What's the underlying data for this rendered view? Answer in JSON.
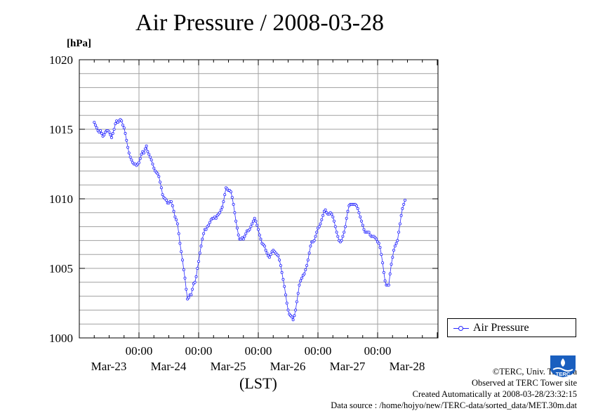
{
  "chart_data": {
    "type": "line",
    "title": "Air Pressure / 2008-03-28",
    "ylabel": "[hPa]",
    "xlabel": "(LST)",
    "ylim": [
      1000,
      1020
    ],
    "yticks": [
      "1000",
      "1005",
      "1010",
      "1015",
      "1020"
    ],
    "x_axis": {
      "time_labels": [
        "00:00",
        "00:00",
        "00:00",
        "00:00",
        "00:00"
      ],
      "date_labels": [
        "Mar-23",
        "Mar-24",
        "Mar-25",
        "Mar-26",
        "Mar-27",
        "Mar-28"
      ]
    },
    "grid": true,
    "legend_position": "right",
    "series": [
      {
        "name": "Air Pressure",
        "color": "#2828ff",
        "sample_interval": "30 min",
        "start": "Mar-22 06:00",
        "values": [
          1015.5,
          1015.3,
          1015.1,
          1014.9,
          1014.8,
          1014.9,
          1014.7,
          1014.5,
          1014.6,
          1014.8,
          1014.9,
          1014.9,
          1014.8,
          1014.6,
          1014.4,
          1014.7,
          1015.0,
          1015.4,
          1015.6,
          1015.5,
          1015.6,
          1015.7,
          1015.6,
          1015.3,
          1015.1,
          1014.7,
          1014.2,
          1013.7,
          1013.3,
          1013.0,
          1012.8,
          1012.6,
          1012.5,
          1012.5,
          1012.4,
          1012.5,
          1012.6,
          1012.9,
          1013.2,
          1013.4,
          1013.3,
          1013.6,
          1013.8,
          1013.4,
          1013.2,
          1013.0,
          1012.8,
          1012.5,
          1012.2,
          1012.0,
          1011.9,
          1011.8,
          1011.6,
          1011.2,
          1010.8,
          1010.3,
          1010.1,
          1010.0,
          1009.9,
          1009.7,
          1009.7,
          1009.8,
          1009.8,
          1009.5,
          1009.1,
          1008.7,
          1008.5,
          1008.2,
          1007.5,
          1006.8,
          1006.2,
          1005.6,
          1004.9,
          1004.3,
          1003.5,
          1002.8,
          1002.9,
          1003.1,
          1003.1,
          1003.5,
          1003.9,
          1004.0,
          1004.4,
          1005.0,
          1005.5,
          1006.1,
          1006.6,
          1007.1,
          1007.5,
          1007.8,
          1007.8,
          1008.0,
          1008.1,
          1008.3,
          1008.5,
          1008.6,
          1008.6,
          1008.7,
          1008.6,
          1008.8,
          1008.9,
          1009.0,
          1009.2,
          1009.4,
          1009.8,
          1010.3,
          1010.8,
          1010.7,
          1010.6,
          1010.6,
          1010.5,
          1010.1,
          1009.6,
          1009.0,
          1008.4,
          1007.9,
          1007.4,
          1007.1,
          1007.1,
          1007.2,
          1007.1,
          1007.3,
          1007.5,
          1007.7,
          1007.7,
          1007.8,
          1008.0,
          1008.2,
          1008.4,
          1008.6,
          1008.4,
          1008.1,
          1007.8,
          1007.4,
          1007.1,
          1006.8,
          1006.7,
          1006.6,
          1006.3,
          1006.1,
          1005.9,
          1005.8,
          1006.0,
          1006.2,
          1006.3,
          1006.2,
          1006.1,
          1006.0,
          1005.9,
          1005.6,
          1005.2,
          1004.7,
          1004.2,
          1003.7,
          1003.1,
          1002.5,
          1002.0,
          1001.7,
          1001.6,
          1001.5,
          1001.3,
          1001.6,
          1002.0,
          1002.6,
          1003.2,
          1003.8,
          1004.1,
          1004.3,
          1004.5,
          1004.6,
          1004.9,
          1005.2,
          1005.6,
          1006.1,
          1006.6,
          1006.9,
          1006.9,
          1007.0,
          1007.3,
          1007.6,
          1007.9,
          1008.0,
          1008.2,
          1008.5,
          1008.8,
          1009.1,
          1009.2,
          1009.0,
          1008.9,
          1008.9,
          1009.0,
          1008.9,
          1008.7,
          1008.4,
          1008.0,
          1007.6,
          1007.3,
          1007.0,
          1006.9,
          1007.0,
          1007.3,
          1007.6,
          1008.0,
          1008.6,
          1009.1,
          1009.5,
          1009.6,
          1009.6,
          1009.6,
          1009.6,
          1009.6,
          1009.5,
          1009.3,
          1009.0,
          1008.7,
          1008.4,
          1008.1,
          1007.8,
          1007.6,
          1007.6,
          1007.6,
          1007.6,
          1007.4,
          1007.3,
          1007.3,
          1007.3,
          1007.2,
          1007.1,
          1006.9,
          1006.8,
          1006.5,
          1006.0,
          1005.4,
          1004.7,
          1004.1,
          1003.8,
          1003.8,
          1003.8,
          1004.6,
          1005.3,
          1005.8,
          1006.3,
          1006.6,
          1006.8,
          1007.0,
          1007.6,
          1008.2,
          1008.8,
          1009.3,
          1009.6,
          1009.9
        ]
      }
    ]
  },
  "footer": {
    "copyright": "©TERC, Univ. Tsukuba",
    "observed": "Observed at TERC Tower site",
    "created": "Created Automatically at 2008-03-28/23:32:15",
    "source": "Data source : /home/hojyo/new/TERC-data/sorted_data/MET.30m.dat"
  },
  "logo": {
    "name": "terc-logo",
    "text": "TERC",
    "color": "#1a5fbf"
  }
}
